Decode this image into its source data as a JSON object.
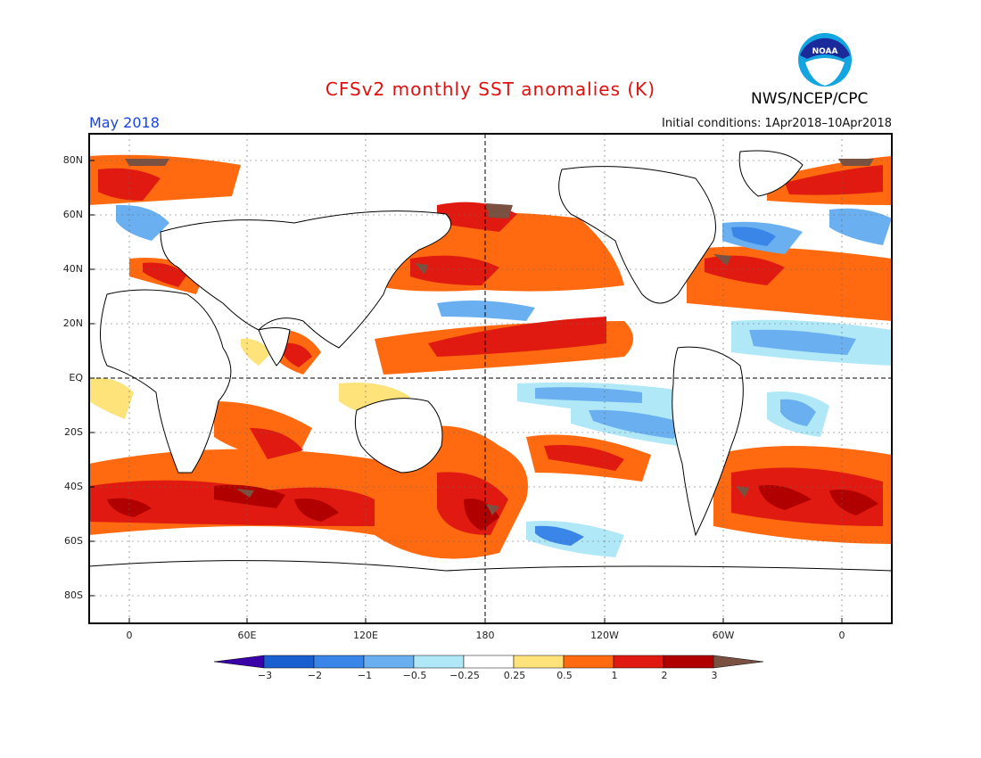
{
  "header": {
    "title": "CFSv2 monthly SST anomalies (K)",
    "month": "May 2018",
    "initial_conditions": "Initial conditions: 1Apr2018–10Apr2018",
    "agency": "NWS/NCEP/CPC",
    "logo_text": "NOAA"
  },
  "map": {
    "y_ticks": [
      "80N",
      "60N",
      "40N",
      "20N",
      "EQ",
      "20S",
      "40S",
      "60S",
      "80S"
    ],
    "x_ticks": [
      "0",
      "60E",
      "120E",
      "180",
      "120W",
      "60W",
      "0"
    ]
  },
  "colorbar": {
    "labels": [
      "−3",
      "−2",
      "−1",
      "−0.5",
      "−0.25",
      "0.25",
      "0.5",
      "1",
      "2",
      "3"
    ],
    "colors": [
      "#3a00a8",
      "#1a5fd0",
      "#3a85e8",
      "#6ab0f0",
      "#b0e8f8",
      "#ffffff",
      "#fde37a",
      "#ff6a10",
      "#e01a10",
      "#b00000",
      "#7a5040"
    ]
  },
  "colors": {
    "warm_strong": "#b00000",
    "warm": "#e01a10",
    "warm_mid": "#ff6a10",
    "warm_weak": "#fde37a",
    "cool_weak": "#b0e8f8",
    "cool": "#6ab0f0",
    "cool_strong": "#3a85e8",
    "extreme_warm": "#7a5040",
    "land": "#ffffff"
  }
}
